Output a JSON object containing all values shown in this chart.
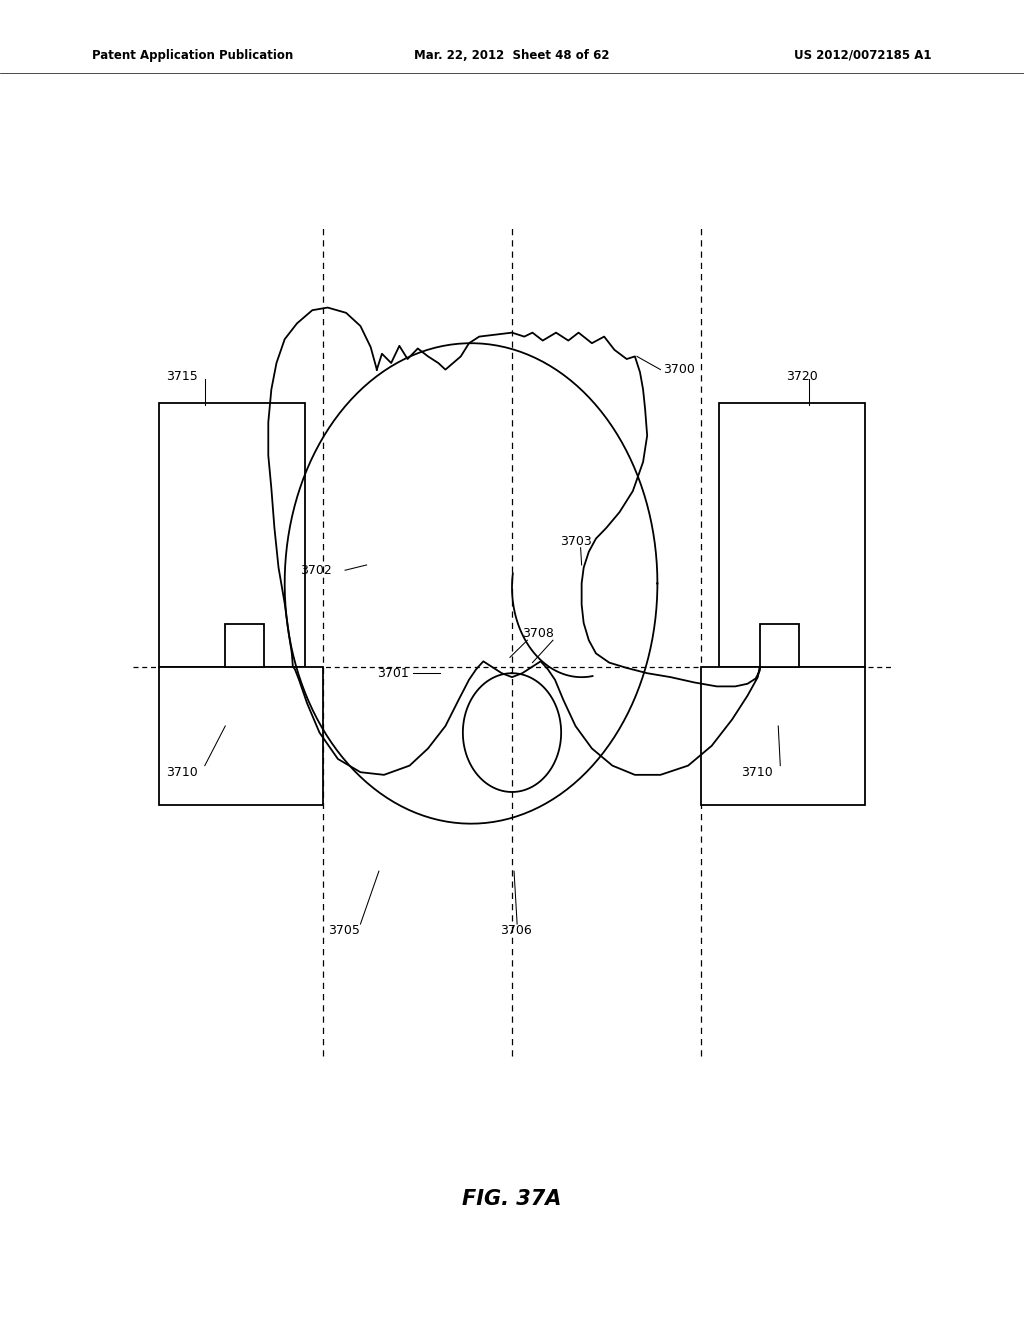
{
  "title": "FIG. 37A",
  "header_left": "Patent Application Publication",
  "header_center": "Mar. 22, 2012  Sheet 48 of 62",
  "header_right": "US 2012/0072185 A1",
  "bg_color": "#ffffff",
  "line_color": "#000000",
  "lw": 1.3
}
